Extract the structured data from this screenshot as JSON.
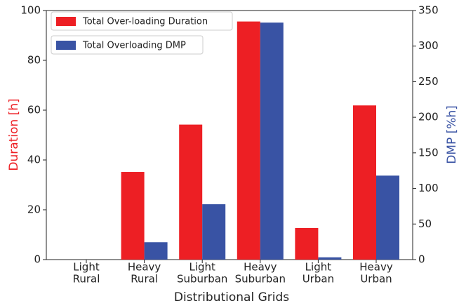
{
  "chart_data": {
    "type": "bar",
    "categories": [
      [
        "Light",
        "Rural"
      ],
      [
        "Heavy",
        "Rural"
      ],
      [
        "Light",
        "Suburban"
      ],
      [
        "Heavy",
        "Suburban"
      ],
      [
        "Light",
        "Urban"
      ],
      [
        "Heavy",
        "Urban"
      ]
    ],
    "series": [
      {
        "name": "Total Over-loading Duration",
        "color": "#ed1f24",
        "values": [
          0,
          35.2,
          54.2,
          95.6,
          12.7,
          61.9
        ]
      },
      {
        "name": "Total Overloading DMP",
        "color": "#3953a4",
        "values": [
          0,
          24.4,
          77.8,
          333,
          3.2,
          118
        ],
        "axis": "y2"
      }
    ],
    "xlabel": "Distributional Grids",
    "ylabel": "Duration [h]",
    "y2label": "DMP [%h]",
    "ylim": [
      0,
      100
    ],
    "yticks": [
      0,
      20,
      40,
      60,
      80,
      100
    ],
    "y2lim": [
      0,
      350
    ],
    "y2ticks": [
      0,
      50,
      100,
      150,
      200,
      250,
      300,
      350
    ],
    "legend": "upper left"
  }
}
